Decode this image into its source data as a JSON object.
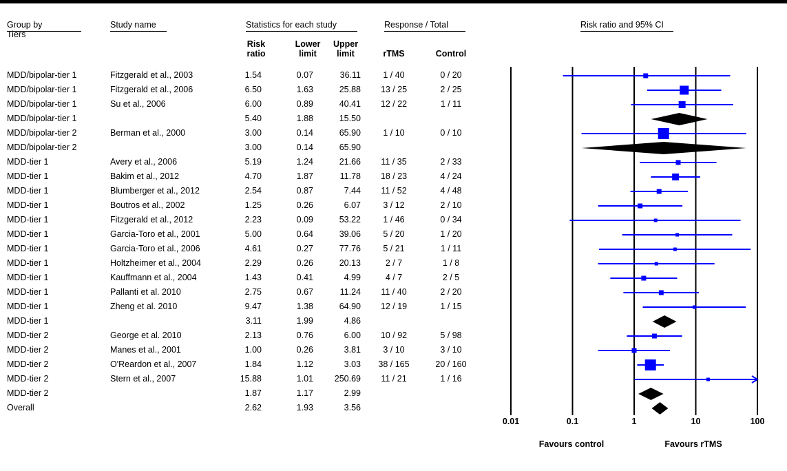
{
  "headers": {
    "group_by": "Group by",
    "tiers": "Tiers",
    "study_name": "Study name",
    "stats": "Statistics for each study",
    "response_total": "Response / Total",
    "rr_ci": "Risk ratio and 95% CI",
    "risk_ratio": "Risk ratio",
    "lower_limit": "Lower limit",
    "upper_limit": "Upper limit",
    "rtms": "rTMS",
    "control": "Control"
  },
  "chart_data": {
    "type": "forest",
    "xscale": "log",
    "xlim": [
      0.01,
      100
    ],
    "xticks": [
      "0.01",
      "0.1",
      "1",
      "10",
      "100"
    ],
    "xlabel_left": "Favours control",
    "xlabel_right": "Favours rTMS",
    "rows": [
      {
        "group": "MDD/bipolar-tier 1",
        "study": "Fitzgerald et al., 2003",
        "rr": "1.54",
        "lo": "0.07",
        "up": "36.11",
        "rtms": "1 / 40",
        "control": "0 / 20",
        "kind": "study",
        "w": 1
      },
      {
        "group": "MDD/bipolar-tier 1",
        "study": "Fitzgerald et al., 2006",
        "rr": "6.50",
        "lo": "1.63",
        "up": "25.88",
        "rtms": "13 / 25",
        "control": "2 / 25",
        "kind": "study",
        "w": 3
      },
      {
        "group": "MDD/bipolar-tier 1",
        "study": "Su et al., 2006",
        "rr": "6.00",
        "lo": "0.89",
        "up": "40.41",
        "rtms": "12 / 22",
        "control": "1 / 11",
        "kind": "study",
        "w": 2
      },
      {
        "group": "MDD/bipolar-tier 1",
        "study": "",
        "rr": "5.40",
        "lo": "1.88",
        "up": "15.50",
        "rtms": "",
        "control": "",
        "kind": "summary"
      },
      {
        "group": "MDD/bipolar-tier 2",
        "study": "Berman et al., 2000",
        "rr": "3.00",
        "lo": "0.14",
        "up": "65.90",
        "rtms": "1 / 10",
        "control": "0 / 10",
        "kind": "study",
        "w": 4
      },
      {
        "group": "MDD/bipolar-tier 2",
        "study": "",
        "rr": "3.00",
        "lo": "0.14",
        "up": "65.90",
        "rtms": "",
        "control": "",
        "kind": "summary"
      },
      {
        "group": "MDD-tier 1",
        "study": "Avery et al., 2006",
        "rr": "5.19",
        "lo": "1.24",
        "up": "21.66",
        "rtms": "11 / 35",
        "control": "2 / 33",
        "kind": "study",
        "w": 1
      },
      {
        "group": "MDD-tier 1",
        "study": "Bakim et al., 2012",
        "rr": "4.70",
        "lo": "1.87",
        "up": "11.78",
        "rtms": "18 / 23",
        "control": "4 / 24",
        "kind": "study",
        "w": 2
      },
      {
        "group": "MDD-tier 1",
        "study": "Blumberger et al., 2012",
        "rr": "2.54",
        "lo": "0.87",
        "up": "7.44",
        "rtms": "11 / 52",
        "control": "4 / 48",
        "kind": "study",
        "w": 1
      },
      {
        "group": "MDD-tier 1",
        "study": "Boutros et al., 2002",
        "rr": "1.25",
        "lo": "0.26",
        "up": "6.07",
        "rtms": "3 / 12",
        "control": "2 / 10",
        "kind": "study",
        "w": 1
      },
      {
        "group": "MDD-tier 1",
        "study": "Fitzgerald et al., 2012",
        "rr": "2.23",
        "lo": "0.09",
        "up": "53.22",
        "rtms": "1 / 46",
        "control": "0 / 34",
        "kind": "study",
        "w": 0
      },
      {
        "group": "MDD-tier 1",
        "study": "Garcia-Toro et al., 2001",
        "rr": "5.00",
        "lo": "0.64",
        "up": "39.06",
        "rtms": "5 / 20",
        "control": "1 / 20",
        "kind": "study",
        "w": 0
      },
      {
        "group": "MDD-tier 1",
        "study": "Garcia-Toro et al., 2006",
        "rr": "4.61",
        "lo": "0.27",
        "up": "77.76",
        "rtms": "5 / 21",
        "control": "1 / 11",
        "kind": "study",
        "w": 0
      },
      {
        "group": "MDD-tier 1",
        "study": "Holtzheimer et al., 2004",
        "rr": "2.29",
        "lo": "0.26",
        "up": "20.13",
        "rtms": "2 / 7",
        "control": "1 / 8",
        "kind": "study",
        "w": 0
      },
      {
        "group": "MDD-tier 1",
        "study": "Kauffmann et al., 2004",
        "rr": "1.43",
        "lo": "0.41",
        "up": "4.99",
        "rtms": "4 / 7",
        "control": "2 / 5",
        "kind": "study",
        "w": 1
      },
      {
        "group": "MDD-tier 1",
        "study": "Pallanti et al. 2010",
        "rr": "2.75",
        "lo": "0.67",
        "up": "11.24",
        "rtms": "11 / 40",
        "control": "2 / 20",
        "kind": "study",
        "w": 1
      },
      {
        "group": "MDD-tier 1",
        "study": "Zheng et al. 2010",
        "rr": "9.47",
        "lo": "1.38",
        "up": "64.90",
        "rtms": "12 / 19",
        "control": "1 / 15",
        "kind": "study",
        "w": 0
      },
      {
        "group": "MDD-tier 1",
        "study": "",
        "rr": "3.11",
        "lo": "1.99",
        "up": "4.86",
        "rtms": "",
        "control": "",
        "kind": "summary"
      },
      {
        "group": "MDD-tier 2",
        "study": "George et al. 2010",
        "rr": "2.13",
        "lo": "0.76",
        "up": "6.00",
        "rtms": "10 / 92",
        "control": "5 / 98",
        "kind": "study",
        "w": 1
      },
      {
        "group": "MDD-tier 2",
        "study": "Manes et al., 2001",
        "rr": "1.00",
        "lo": "0.26",
        "up": "3.81",
        "rtms": "3 / 10",
        "control": "3 / 10",
        "kind": "study",
        "w": 1
      },
      {
        "group": "MDD-tier 2",
        "study": "O'Reardon et al., 2007",
        "rr": "1.84",
        "lo": "1.12",
        "up": "3.03",
        "rtms": "38 / 165",
        "control": "20 / 160",
        "kind": "study",
        "w": 4
      },
      {
        "group": "MDD-tier 2",
        "study": "Stern et al., 2007",
        "rr": "15.88",
        "lo": "1.01",
        "up": "250.69",
        "rtms": "11 / 21",
        "control": "1 / 16",
        "kind": "study",
        "w": 0
      },
      {
        "group": "MDD-tier 2",
        "study": "",
        "rr": "1.87",
        "lo": "1.17",
        "up": "2.99",
        "rtms": "",
        "control": "",
        "kind": "summary"
      },
      {
        "group": "Overall",
        "study": "",
        "rr": "2.62",
        "lo": "1.93",
        "up": "3.56",
        "rtms": "",
        "control": "",
        "kind": "summary"
      }
    ]
  }
}
